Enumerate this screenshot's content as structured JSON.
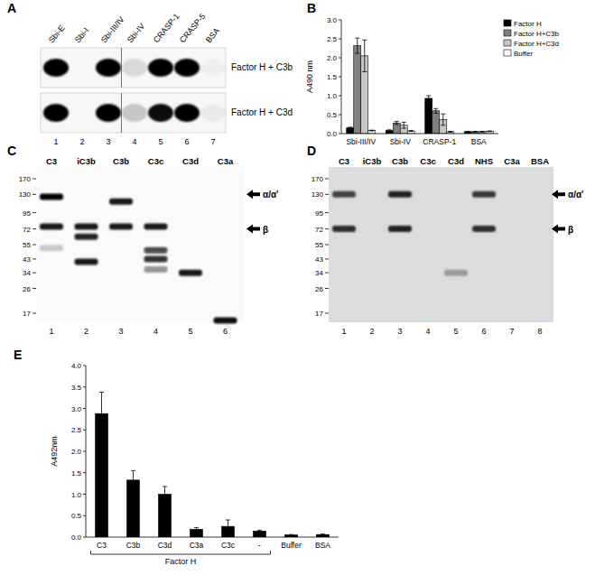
{
  "chart_data": [
    {
      "type": "bar",
      "title": "B",
      "ylabel": "A490 nm",
      "categories": [
        "Sbi-III/IV",
        "Sbi-IV",
        "CRASP-1",
        "BSA"
      ],
      "ylim": [
        0,
        3
      ],
      "yticks": [
        {
          "value": 0,
          "label": "0.0"
        },
        {
          "value": 0.5,
          "label": "0.5"
        },
        {
          "value": 1,
          "label": "1.0"
        },
        {
          "value": 1.5,
          "label": "1.5"
        },
        {
          "value": 2,
          "label": "2.0"
        },
        {
          "value": 2.5,
          "label": "2.5"
        },
        {
          "value": 3,
          "label": "3.0"
        }
      ],
      "grid": false,
      "legend": "upper right",
      "series": [
        {
          "name": "Factor H",
          "color": "#000000",
          "values": [
            0.15,
            0.08,
            0.93,
            0.05
          ],
          "errors": [
            0.02,
            0.02,
            0.07,
            0.01
          ]
        },
        {
          "name": "Factor H+C3b",
          "color": "#808080",
          "values": [
            2.32,
            0.28,
            0.6,
            0.05
          ],
          "errors": [
            0.2,
            0.04,
            0.06,
            0.01
          ]
        },
        {
          "name": "Factor H+C3d",
          "color": "#c8c8c8",
          "values": [
            2.05,
            0.22,
            0.37,
            0.05
          ],
          "errors": [
            0.42,
            0.08,
            0.15,
            0.01
          ]
        },
        {
          "name": "Buffer",
          "color": "#ffffff",
          "values": [
            0.08,
            0.07,
            0.05,
            0.06
          ],
          "errors": [
            0.01,
            0.01,
            0.01,
            0.01
          ]
        }
      ]
    },
    {
      "type": "bar",
      "title": "E",
      "ylabel": "A492nm",
      "categories": [
        "C3",
        "C3b",
        "C3d",
        "C3a",
        "C3c",
        "-",
        "Buffer",
        "BSA"
      ],
      "ylim": [
        0,
        4
      ],
      "yticks": [
        {
          "value": 0,
          "label": "0.0"
        },
        {
          "value": 0.5,
          "label": "0.5"
        },
        {
          "value": 1,
          "label": "1.0"
        },
        {
          "value": 1.5,
          "label": "1.5"
        },
        {
          "value": 2,
          "label": "2.0"
        },
        {
          "value": 2.5,
          "label": "2.5"
        },
        {
          "value": 3,
          "label": "3.0"
        },
        {
          "value": 3.5,
          "label": "3.5"
        },
        {
          "value": 4,
          "label": "4.0"
        }
      ],
      "grid": false,
      "color": "#000000",
      "values": [
        2.88,
        1.33,
        1.0,
        0.18,
        0.25,
        0.14,
        0.05,
        0.06
      ],
      "errors": [
        0.5,
        0.22,
        0.18,
        0.04,
        0.15,
        0.02,
        0.01,
        0.01
      ],
      "annotations": [
        {
          "text": "Factor H",
          "first": 0,
          "last": 5
        }
      ]
    }
  ],
  "blots": [
    {
      "panel": "A",
      "lanes": [
        "Sbi-E",
        "Sbi-I",
        "Sbi-III/IV",
        "Sbi-IV",
        "CRASP-1",
        "CRASP-5",
        "BSA"
      ],
      "lane_numbers": [
        1,
        2,
        3,
        4,
        5,
        6,
        7
      ],
      "divider_after_lane": 3,
      "rows": [
        {
          "label": "Factor H + C3b",
          "intensity": [
            1,
            0,
            1,
            0.12,
            1,
            1,
            0.03
          ]
        },
        {
          "label": "Factor H + C3d",
          "intensity": [
            1,
            0,
            1,
            0.2,
            0.95,
            1,
            0.05
          ]
        }
      ]
    },
    {
      "panel": "C",
      "lanes": [
        "C3",
        "iC3b",
        "C3b",
        "C3c",
        "C3d",
        "C3a"
      ],
      "lane_numbers": [
        1,
        2,
        3,
        4,
        5,
        6
      ],
      "markers": [
        170,
        130,
        95,
        72,
        55,
        43,
        34,
        26,
        17
      ],
      "arrows": [
        {
          "label": "α/α'",
          "kda": 130
        },
        {
          "label": "β",
          "kda": 72
        }
      ],
      "bands": [
        {
          "lane": 0,
          "kda": 125,
          "intensity": 1
        },
        {
          "lane": 0,
          "kda": 75,
          "intensity": 0.9
        },
        {
          "lane": 0,
          "kda": 52,
          "intensity": 0.2
        },
        {
          "lane": 1,
          "kda": 75,
          "intensity": 0.9
        },
        {
          "lane": 1,
          "kda": 63,
          "intensity": 0.85
        },
        {
          "lane": 1,
          "kda": 41,
          "intensity": 0.9
        },
        {
          "lane": 2,
          "kda": 115,
          "intensity": 0.9
        },
        {
          "lane": 2,
          "kda": 75,
          "intensity": 0.9
        },
        {
          "lane": 3,
          "kda": 75,
          "intensity": 0.9
        },
        {
          "lane": 3,
          "kda": 50,
          "intensity": 0.7
        },
        {
          "lane": 3,
          "kda": 43,
          "intensity": 0.8
        },
        {
          "lane": 3,
          "kda": 36,
          "intensity": 0.4
        },
        {
          "lane": 4,
          "kda": 34,
          "intensity": 0.9
        },
        {
          "lane": 5,
          "kda": 15,
          "intensity": 0.95
        }
      ]
    },
    {
      "panel": "D",
      "lanes": [
        "C3",
        "iC3b",
        "C3b",
        "C3c",
        "C3d",
        "NHS",
        "C3a",
        "BSA"
      ],
      "lane_numbers": [
        1,
        2,
        3,
        4,
        5,
        6,
        7,
        8
      ],
      "markers": [
        170,
        130,
        95,
        72,
        55,
        43,
        34,
        26,
        17
      ],
      "arrows": [
        {
          "label": "α/α'",
          "kda": 130
        },
        {
          "label": "β",
          "kda": 72
        }
      ],
      "bands": [
        {
          "lane": 0,
          "kda": 130,
          "intensity": 0.7
        },
        {
          "lane": 0,
          "kda": 72,
          "intensity": 0.8
        },
        {
          "lane": 2,
          "kda": 130,
          "intensity": 0.85
        },
        {
          "lane": 2,
          "kda": 72,
          "intensity": 0.85
        },
        {
          "lane": 4,
          "kda": 34,
          "intensity": 0.3
        },
        {
          "lane": 5,
          "kda": 130,
          "intensity": 0.75
        },
        {
          "lane": 5,
          "kda": 72,
          "intensity": 0.8
        }
      ]
    }
  ]
}
